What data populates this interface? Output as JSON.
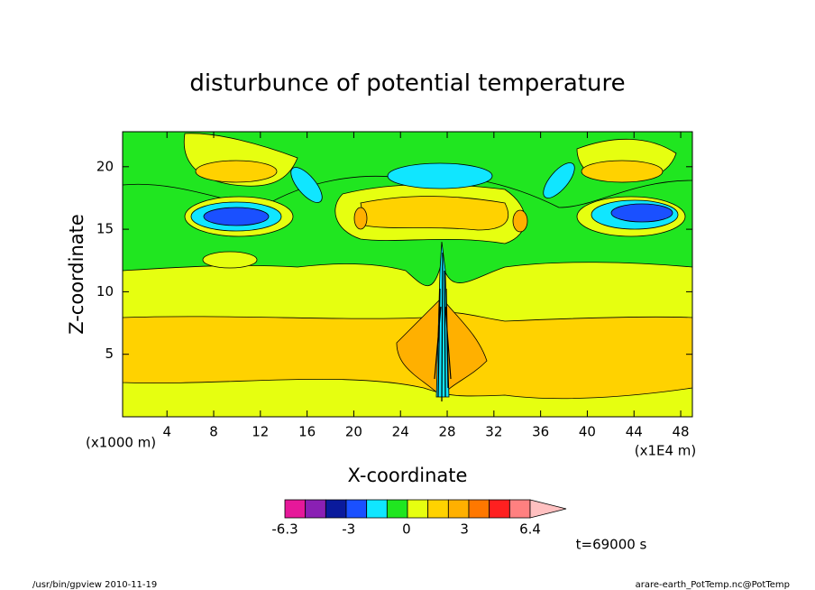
{
  "chart_data": {
    "type": "contour",
    "title": "disturbunce of potential temperature",
    "x_label": "X-coordinate",
    "y_label": "Z-coordinate",
    "x_unit_note": "(x1E4 m)",
    "y_unit_note": "(x1000 m)",
    "time_note": "t=69000 s",
    "footer_left": "/usr/bin/gpview   2010-11-19",
    "footer_right": "arare-earth_PotTemp.nc@PotTemp",
    "xlim": [
      0.2,
      49
    ],
    "xticks": [
      4,
      8,
      12,
      16,
      20,
      24,
      28,
      32,
      36,
      40,
      44,
      48
    ],
    "ylim": [
      0,
      22.8
    ],
    "yticks": [
      5,
      10,
      15,
      20
    ],
    "colorbar": {
      "lim": [
        -6.3,
        6.4
      ],
      "ticks": [
        -6.3,
        -3,
        0,
        3,
        6.4
      ],
      "colors": [
        "#e6189a",
        "#8a20b4",
        "#0a1a9c",
        "#1a50ff",
        "#10e6ff",
        "#20e620",
        "#e6ff10",
        "#ffd200",
        "#ffb000",
        "#ff7800",
        "#ff2020",
        "#ff8080",
        "#ffc0c0"
      ]
    }
  }
}
